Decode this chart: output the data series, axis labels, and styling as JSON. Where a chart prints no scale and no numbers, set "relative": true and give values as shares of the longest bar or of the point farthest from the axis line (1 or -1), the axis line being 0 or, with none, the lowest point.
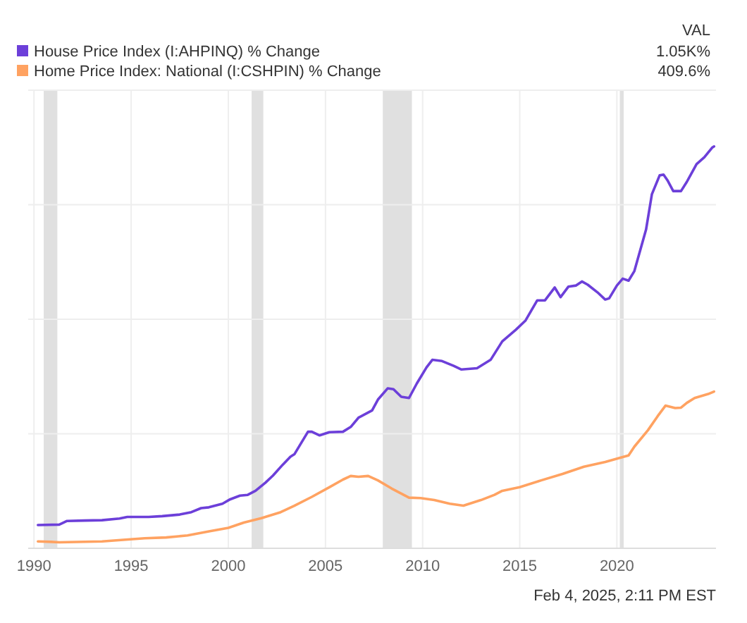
{
  "chart_data": {
    "type": "line",
    "relative": true,
    "legend": "top left",
    "grid": true,
    "xlim": [
      1989.7,
      2025.1
    ],
    "xticks": [
      1990,
      1995,
      2000,
      2005,
      2010,
      2015,
      2020
    ],
    "annotations": [
      "VAL",
      "1.05K%",
      "409.6%",
      "Feb 4, 2025, 2:11 PM EST"
    ],
    "bands": [
      {
        "axis": "x",
        "from": 1990.5,
        "to": 1991.2,
        "color": "#e0e0e0"
      },
      {
        "axis": "x",
        "from": 2001.2,
        "to": 2001.8,
        "color": "#e0e0e0"
      },
      {
        "axis": "x",
        "from": 2007.95,
        "to": 2009.45,
        "color": "#e0e0e0"
      },
      {
        "axis": "x",
        "from": 2020.15,
        "to": 2020.35,
        "color": "#e0e0e0"
      }
    ],
    "series": [
      {
        "name": "House Price Index (I:AHPINQ) % Change",
        "color": "#6c3fd9",
        "x": [
          1990.2,
          1991.3,
          1991.7,
          1992.6,
          1993.5,
          1994.4,
          1994.8,
          1995.9,
          1996.6,
          1997.5,
          1998.1,
          1998.6,
          1999.0,
          1999.7,
          2000.1,
          2000.6,
          2001.0,
          2001.4,
          2001.9,
          2002.3,
          2002.8,
          2003.2,
          2003.4,
          2004.1,
          2004.3,
          2004.7,
          2005.2,
          2005.9,
          2006.3,
          2006.7,
          2007.4,
          2007.7,
          2008.2,
          2008.5,
          2008.9,
          2009.3,
          2009.7,
          2010.2,
          2010.5,
          2011.0,
          2011.6,
          2012.0,
          2012.8,
          2013.5,
          2014.1,
          2014.8,
          2015.3,
          2015.9,
          2016.3,
          2016.8,
          2017.1,
          2017.5,
          2017.9,
          2018.2,
          2018.5,
          2019.0,
          2019.4,
          2019.6,
          2020.0,
          2020.3,
          2020.6,
          2020.9,
          2021.5,
          2021.8,
          2022.2,
          2022.4,
          2022.6,
          2022.9,
          2023.3,
          2023.6,
          2024.1,
          2024.5,
          2024.9,
          2025.0
        ],
        "values": [
          0.058,
          0.059,
          0.068,
          0.069,
          0.07,
          0.074,
          0.078,
          0.078,
          0.08,
          0.084,
          0.09,
          0.1,
          0.102,
          0.111,
          0.122,
          0.131,
          0.133,
          0.143,
          0.163,
          0.181,
          0.208,
          0.228,
          0.234,
          0.29,
          0.29,
          0.281,
          0.289,
          0.29,
          0.302,
          0.325,
          0.343,
          0.37,
          0.398,
          0.396,
          0.377,
          0.374,
          0.41,
          0.45,
          0.469,
          0.466,
          0.454,
          0.445,
          0.448,
          0.469,
          0.515,
          0.544,
          0.567,
          0.617,
          0.617,
          0.649,
          0.625,
          0.651,
          0.654,
          0.664,
          0.656,
          0.637,
          0.619,
          0.622,
          0.654,
          0.671,
          0.666,
          0.69,
          0.793,
          0.881,
          0.928,
          0.93,
          0.916,
          0.889,
          0.889,
          0.912,
          0.956,
          0.973,
          0.997,
          1
        ]
      },
      {
        "name": "Home Price Index: National (I:CSHPIN) % Change",
        "color": "#ffa261",
        "x": [
          1990.2,
          1990.9,
          1991.3,
          1993.5,
          1995.7,
          1996.8,
          1997.9,
          1999.0,
          2000.0,
          2000.8,
          2001.7,
          2002.7,
          2003.4,
          2004.3,
          2005.2,
          2005.9,
          2006.3,
          2006.7,
          2007.2,
          2007.7,
          2008.4,
          2009.3,
          2009.9,
          2010.6,
          2011.4,
          2012.1,
          2013.0,
          2013.7,
          2014.1,
          2015.0,
          2016.1,
          2017.2,
          2018.3,
          2019.4,
          2020.3,
          2020.6,
          2020.9,
          2021.6,
          2022.1,
          2022.5,
          2023.0,
          2023.3,
          2023.6,
          2024.0,
          2024.7,
          2025.0
        ],
        "values": [
          0.017,
          0.016,
          0.015,
          0.017,
          0.025,
          0.027,
          0.032,
          0.042,
          0.051,
          0.064,
          0.075,
          0.09,
          0.106,
          0.128,
          0.152,
          0.171,
          0.18,
          0.178,
          0.18,
          0.169,
          0.149,
          0.126,
          0.125,
          0.12,
          0.111,
          0.106,
          0.12,
          0.133,
          0.143,
          0.152,
          0.169,
          0.185,
          0.203,
          0.215,
          0.227,
          0.231,
          0.253,
          0.294,
          0.329,
          0.355,
          0.349,
          0.35,
          0.362,
          0.374,
          0.384,
          0.39
        ]
      }
    ]
  }
}
